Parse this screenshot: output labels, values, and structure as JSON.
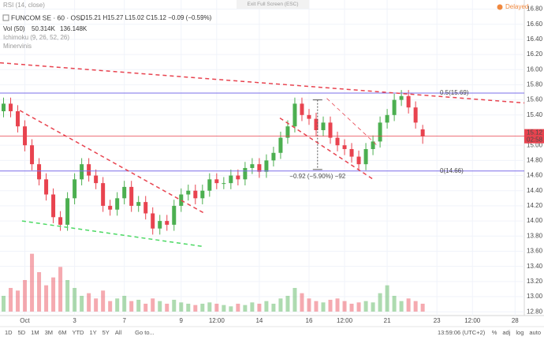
{
  "chart_data": {
    "type": "candlestick",
    "header": {
      "rsi": "RSI (14, close)",
      "exit": "Exit Full Screen (ESC)",
      "delayed": "Delayed",
      "symbol": "FUNCOM SE · 60 · OSL",
      "ohlc": "O15.21 H15.27 L15.02 C15.12 −0.09 (−0.59%)",
      "vol": "Vol (50)",
      "vol_a": "50.314K",
      "vol_b": "136.148K",
      "ichimoku": "Ichimoku (9, 26, 52, 26)",
      "minervini": "Minervinis"
    },
    "toolbar": {
      "ranges": [
        "1D",
        "5D",
        "1M",
        "3M",
        "6M",
        "YTD",
        "1Y",
        "5Y",
        "All"
      ],
      "goto": "Go to...",
      "clock": "13:59:06 (UTC+2)",
      "options": [
        "%",
        "adj",
        "log",
        "auto"
      ]
    },
    "up_color": "#4caf50",
    "down_color": "#e8434f",
    "grid": true,
    "xlim": [
      -0.5,
      73.3
    ],
    "ylim": [
      12.75,
      16.92
    ],
    "vol_ylim": [
      0,
      300
    ],
    "xticks": [
      {
        "value": 3,
        "label": "Oct"
      },
      {
        "value": 10,
        "label": "3"
      },
      {
        "value": 17,
        "label": "7"
      },
      {
        "value": 25,
        "label": "9"
      },
      {
        "value": 30,
        "label": "12:00"
      },
      {
        "value": 36,
        "label": "14"
      },
      {
        "value": 43,
        "label": "16"
      },
      {
        "value": 48,
        "label": "12:00"
      },
      {
        "value": 54,
        "label": "21"
      },
      {
        "value": 61,
        "label": "23"
      },
      {
        "value": 66,
        "label": "12:00"
      },
      {
        "value": 72,
        "label": "28"
      }
    ],
    "yticks": [
      {
        "value": 16.8,
        "label": "16.80"
      },
      {
        "value": 16.6,
        "label": "16.60"
      },
      {
        "value": 16.4,
        "label": "16.40"
      },
      {
        "value": 16.2,
        "label": "16.20"
      },
      {
        "value": 16,
        "label": "16.00"
      },
      {
        "value": 15.8,
        "label": "15.80"
      },
      {
        "value": 15.6,
        "label": "15.60"
      },
      {
        "value": 15.4,
        "label": "15.40"
      },
      {
        "value": 15,
        "label": "15.00"
      },
      {
        "value": 14.8,
        "label": "14.80"
      },
      {
        "value": 14.6,
        "label": "14.60"
      },
      {
        "value": 14.4,
        "label": "14.40"
      },
      {
        "value": 14.2,
        "label": "14.20"
      },
      {
        "value": 14,
        "label": "14.00"
      },
      {
        "value": 13.8,
        "label": "13.80"
      },
      {
        "value": 13.6,
        "label": "13.60"
      },
      {
        "value": 13.4,
        "label": "13.40"
      },
      {
        "value": 13.2,
        "label": "13.20"
      },
      {
        "value": 13,
        "label": "13.00"
      },
      {
        "value": 12.8,
        "label": "12.80"
      }
    ],
    "open": [
      15.45,
      15.55,
      15.45,
      15.25,
      15.0,
      14.75,
      14.55,
      14.35,
      14.05,
      13.95,
      14.3,
      14.55,
      14.75,
      14.6,
      14.5,
      14.2,
      14.15,
      14.3,
      14.45,
      14.2,
      14.25,
      14.1,
      13.9,
      14.0,
      13.95,
      14.2,
      14.35,
      14.4,
      14.3,
      14.4,
      14.55,
      14.5,
      14.5,
      14.6,
      14.55,
      14.7,
      14.75,
      14.65,
      14.8,
      14.9,
      15.1,
      15.25,
      15.55,
      15.4,
      15.35,
      15.2,
      15.3,
      15.1,
      15.0,
      14.95,
      14.85,
      14.75,
      14.95,
      15.05,
      15.3,
      15.4,
      15.6,
      15.65,
      15.5,
      15.21
    ],
    "high": [
      15.63,
      15.63,
      15.53,
      15.33,
      15.08,
      14.83,
      14.63,
      14.43,
      14.13,
      14.38,
      14.63,
      14.83,
      14.83,
      14.68,
      14.58,
      14.28,
      14.38,
      14.53,
      14.53,
      14.33,
      14.33,
      14.18,
      14.08,
      14.08,
      14.28,
      14.43,
      14.48,
      14.48,
      14.48,
      14.63,
      14.63,
      14.58,
      14.68,
      14.68,
      14.78,
      14.83,
      14.83,
      14.88,
      14.98,
      15.18,
      15.33,
      15.63,
      15.63,
      15.48,
      15.43,
      15.38,
      15.38,
      15.18,
      15.08,
      15.03,
      14.93,
      15.03,
      15.13,
      15.38,
      15.48,
      15.68,
      15.73,
      15.73,
      15.58,
      15.27
    ],
    "low": [
      15.37,
      15.37,
      15.17,
      14.92,
      14.67,
      14.47,
      14.27,
      13.97,
      13.87,
      13.87,
      14.22,
      14.47,
      14.52,
      14.42,
      14.12,
      14.07,
      14.07,
      14.22,
      14.12,
      14.12,
      14.02,
      13.82,
      13.82,
      13.87,
      13.87,
      14.12,
      14.27,
      14.22,
      14.22,
      14.32,
      14.42,
      14.42,
      14.42,
      14.47,
      14.47,
      14.62,
      14.57,
      14.57,
      14.72,
      14.82,
      15.02,
      15.17,
      15.32,
      15.27,
      15.12,
      15.12,
      15.02,
      14.92,
      14.87,
      14.77,
      14.67,
      14.67,
      14.87,
      14.97,
      15.22,
      15.32,
      15.52,
      15.42,
      15.22,
      15.02
    ],
    "close": [
      15.55,
      15.45,
      15.25,
      15.0,
      14.75,
      14.55,
      14.35,
      14.05,
      13.95,
      14.3,
      14.55,
      14.75,
      14.6,
      14.5,
      14.2,
      14.15,
      14.3,
      14.45,
      14.2,
      14.25,
      14.1,
      13.9,
      14.0,
      13.95,
      14.2,
      14.35,
      14.4,
      14.3,
      14.4,
      14.55,
      14.5,
      14.5,
      14.6,
      14.55,
      14.7,
      14.75,
      14.65,
      14.8,
      14.9,
      15.1,
      15.25,
      15.55,
      15.4,
      15.35,
      15.2,
      15.3,
      15.1,
      15.0,
      14.95,
      14.85,
      14.75,
      14.95,
      15.05,
      15.3,
      15.4,
      15.6,
      15.65,
      15.5,
      15.3,
      15.12
    ],
    "volume": [
      60,
      90,
      80,
      120,
      220,
      150,
      100,
      130,
      170,
      120,
      90,
      60,
      70,
      50,
      80,
      40,
      50,
      60,
      40,
      45,
      30,
      50,
      40,
      30,
      45,
      35,
      30,
      25,
      30,
      35,
      30,
      25,
      20,
      30,
      25,
      35,
      30,
      40,
      30,
      50,
      60,
      90,
      70,
      50,
      40,
      35,
      45,
      50,
      40,
      30,
      35,
      40,
      35,
      70,
      100,
      60,
      40,
      50,
      40,
      30
    ],
    "hlines": [
      {
        "value": 15.69,
        "label": "0.5(15.69)",
        "color": "#7b6fe8"
      },
      {
        "value": 14.66,
        "label": "0(14.66)",
        "color": "#7b6fe8"
      }
    ],
    "last_price": {
      "value": 15.12,
      "countdown": "02:58",
      "color": "#e8434f"
    },
    "trendlines": [
      {
        "x": [
          -0.5,
          73.3
        ],
        "y": [
          16.09,
          15.56
        ],
        "color": "#e8434f",
        "width": 1.5
      },
      {
        "x": [
          2.3,
          28.3
        ],
        "y": [
          15.46,
          14.1
        ],
        "color": "#e8434f",
        "width": 1.5
      },
      {
        "x": [
          2.6,
          28.3
        ],
        "y": [
          14.0,
          13.66
        ],
        "color": "#4cd964",
        "width": 1.5
      },
      {
        "x": [
          38.9,
          52.2
        ],
        "y": [
          15.36,
          14.54
        ],
        "color": "#e8434f",
        "width": 1.5
      },
      {
        "x": [
          45.5,
          52.8
        ],
        "y": [
          15.62,
          14.98
        ],
        "color": "#e8434f",
        "width": 0.8
      }
    ],
    "measure": {
      "x": 44.2,
      "y": [
        15.6,
        14.68
      ],
      "label": "−0.92 (−5.90%) −92"
    }
  }
}
